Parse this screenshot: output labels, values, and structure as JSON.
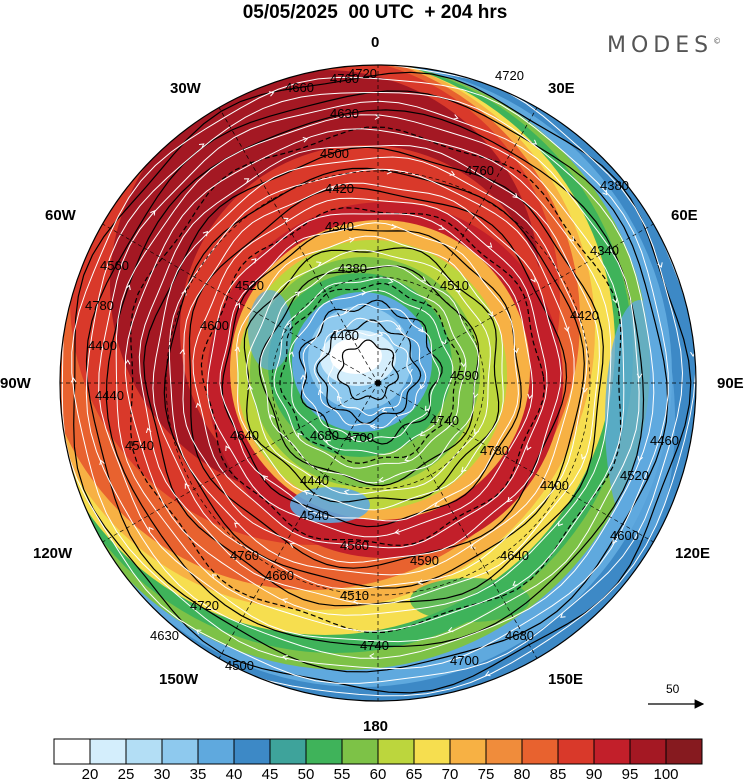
{
  "title": "05/05/2025  00 UTC  + 204 hrs",
  "brand": "MODES",
  "brand_mark": "©",
  "longitude_labels": [
    "0",
    "30E",
    "60E",
    "90E",
    "120E",
    "150E",
    "180",
    "150W",
    "120W",
    "90W",
    "60W",
    "30W"
  ],
  "contour_labels": [
    "4760",
    "4720",
    "4660",
    "4630",
    "4500",
    "4420",
    "4340",
    "4380",
    "4460",
    "4520",
    "4600",
    "4640",
    "4680",
    "4700",
    "4740",
    "4780",
    "4400",
    "4440",
    "4540",
    "4560",
    "4590",
    "4510"
  ],
  "vector_scale_label": "50",
  "colorbar": {
    "labels": [
      "20",
      "25",
      "30",
      "35",
      "40",
      "45",
      "50",
      "55",
      "60",
      "65",
      "70",
      "75",
      "80",
      "85",
      "90",
      "95",
      "100"
    ],
    "colors": [
      "#ffffff",
      "#d4eefc",
      "#b3def5",
      "#8ec9ee",
      "#5fa9de",
      "#3d89c6",
      "#3ea39b",
      "#3fb35a",
      "#7dc247",
      "#bcd63d",
      "#f6de4f",
      "#f7b144",
      "#f08c3b",
      "#e8622f",
      "#d9392a",
      "#c21f2a",
      "#a41823",
      "#861a1f"
    ]
  },
  "field_description_colors": {
    "jet_core": "#a41823",
    "outer_ring": "#3d89c6",
    "polar_low": "#ffffff"
  }
}
